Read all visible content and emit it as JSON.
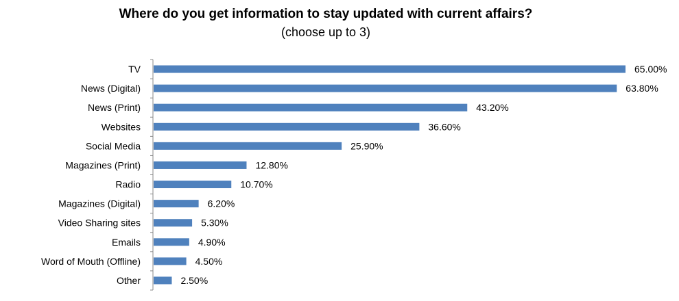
{
  "chart_data": {
    "type": "bar",
    "orientation": "horizontal",
    "title": "Where do you get information to stay updated with current affairs?",
    "subtitle": "(choose up to 3)",
    "categories": [
      "TV",
      "News (Digital)",
      "News (Print)",
      "Websites",
      "Social Media",
      "Magazines (Print)",
      "Radio",
      "Magazines (Digital)",
      "Video Sharing sites",
      "Emails",
      "Word of Mouth (Offline)",
      "Other"
    ],
    "values": [
      65.0,
      63.8,
      43.2,
      36.6,
      25.9,
      12.8,
      10.7,
      6.2,
      5.3,
      4.9,
      4.5,
      2.5
    ],
    "value_labels": [
      "65.00%",
      "63.80%",
      "43.20%",
      "36.60%",
      "25.90%",
      "12.80%",
      "10.70%",
      "6.20%",
      "5.30%",
      "4.90%",
      "4.50%",
      "2.50%"
    ],
    "xlim": [
      0,
      65
    ],
    "grid": false,
    "legend": "none",
    "bar_color": "#4F81BD"
  }
}
